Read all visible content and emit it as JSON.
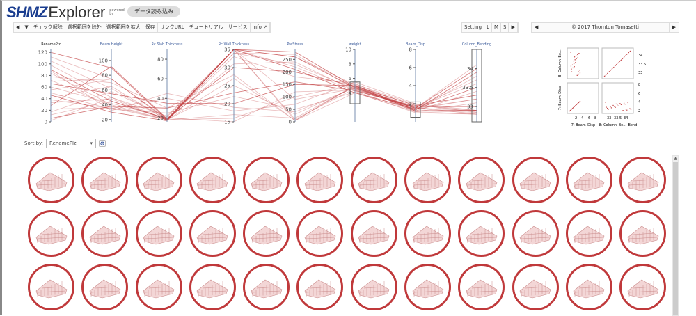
{
  "header": {
    "brand": "SHMZ",
    "app": "Explorer",
    "powered": "powered by",
    "load_button": "データ読み込み"
  },
  "toolbar": {
    "items": [
      "◀",
      "▼",
      "チェック解除",
      "選択範囲を除外",
      "選択範囲を拡大",
      "保存",
      "リンクURL",
      "チュートリアル",
      "サービス",
      "Info ↗"
    ]
  },
  "size_toolbar": {
    "items": [
      "Setting",
      "L",
      "M",
      "S",
      "▶"
    ]
  },
  "copyright": {
    "prev": "◀",
    "text": "© 2017 Thornton Tomasetti",
    "next": "▶"
  },
  "sort": {
    "label": "Sort by:",
    "value": "RenamePlz"
  },
  "colors": {
    "line": "#c0393b",
    "axis_label": "#3a5a9a"
  },
  "chart_data": {
    "type": "parallel-coordinates",
    "axes": [
      {
        "name": "RenamePlz",
        "range": [
          0,
          125
        ],
        "ticks": [
          0,
          20,
          40,
          60,
          80,
          100,
          120
        ]
      },
      {
        "name": "Beam Height",
        "range": [
          17,
          115
        ],
        "ticks": [
          20,
          40,
          60,
          80,
          100
        ]
      },
      {
        "name": "Rc Slab Thickness",
        "range": [
          16,
          90
        ],
        "ticks": [
          20,
          40,
          60,
          80
        ]
      },
      {
        "name": "Rc Wall Thickness",
        "range": [
          15,
          35
        ],
        "ticks": [
          15,
          20,
          25,
          30,
          35
        ]
      },
      {
        "name": "PreStress",
        "range": [
          0,
          290
        ],
        "ticks": [
          0,
          50,
          100,
          150,
          200,
          250
        ]
      },
      {
        "name": "weight",
        "range": [
          0,
          10
        ],
        "ticks": [
          4,
          6,
          8,
          10
        ],
        "brush": [
          2.5,
          5.5
        ]
      },
      {
        "name": "Beam_Disp",
        "range": [
          0,
          8
        ],
        "ticks": [
          2,
          4,
          6,
          8
        ],
        "brush": [
          0.5,
          2.2
        ]
      },
      {
        "name": "Column_Bending",
        "range": [
          32.6,
          34.5
        ],
        "ticks": [
          33.0,
          33.5,
          34.0
        ],
        "brush": [
          32.6,
          34.5
        ]
      }
    ],
    "lines": [
      [
        120,
        90,
        18,
        35,
        280,
        4.8,
        1.5,
        34.0
      ],
      [
        112,
        75,
        19,
        35,
        260,
        5.1,
        1.3,
        33.8
      ],
      [
        105,
        62,
        18,
        34,
        230,
        4.5,
        1.6,
        33.6
      ],
      [
        98,
        50,
        22,
        35,
        220,
        4.2,
        1.2,
        33.4
      ],
      [
        90,
        45,
        19,
        30,
        200,
        4.9,
        1.8,
        33.3
      ],
      [
        84,
        40,
        18,
        33,
        180,
        5.3,
        1.4,
        33.2
      ],
      [
        78,
        70,
        30,
        28,
        5,
        4.0,
        1.1,
        33.1
      ],
      [
        72,
        38,
        18,
        35,
        10,
        4.6,
        1.7,
        33.0
      ],
      [
        66,
        55,
        35,
        20,
        150,
        5.0,
        1.2,
        32.9
      ],
      [
        60,
        42,
        20,
        15,
        120,
        4.4,
        1.5,
        32.9
      ],
      [
        55,
        75,
        18,
        16,
        100,
        5.2,
        1.9,
        32.85
      ],
      [
        50,
        34,
        25,
        22,
        50,
        4.1,
        1.0,
        32.8
      ],
      [
        46,
        30,
        17,
        35,
        260,
        4.7,
        1.3,
        33.9
      ],
      [
        42,
        65,
        18,
        31,
        240,
        4.3,
        1.6,
        33.7
      ],
      [
        38,
        35,
        40,
        18,
        70,
        5.5,
        2.0,
        32.9
      ],
      [
        33,
        48,
        18,
        25,
        30,
        4.8,
        1.2,
        32.85
      ],
      [
        28,
        92,
        19,
        35,
        210,
        4.0,
        1.4,
        33.5
      ],
      [
        22,
        36,
        18,
        27,
        5,
        5.0,
        1.8,
        32.9
      ],
      [
        17,
        58,
        21,
        35,
        90,
        4.6,
        1.5,
        33.2
      ],
      [
        12,
        45,
        18,
        17,
        15,
        4.9,
        1.1,
        32.8
      ],
      [
        6,
        38,
        30,
        23,
        160,
        4.3,
        1.7,
        33.0
      ],
      [
        2,
        50,
        18,
        35,
        5,
        5.1,
        1.3,
        32.9
      ],
      [
        70,
        75,
        18,
        34,
        270,
        4.5,
        1.5,
        34.1
      ],
      [
        88,
        32,
        45,
        19,
        40,
        4.7,
        1.6,
        32.8
      ]
    ]
  },
  "splom": {
    "row_labels": [
      "8: Column_Be...",
      "7: Beam_Disp"
    ],
    "col_labels": [
      "7: Beam_Disp",
      "8: Column_Be..._Bend"
    ],
    "right_ticks_top": [
      "34",
      "33.5",
      "33"
    ],
    "right_ticks_bottom": [
      "8",
      "6",
      "4",
      "2"
    ],
    "bottom_ticks_left": [
      "2",
      "4",
      "6",
      "8"
    ],
    "bottom_ticks_right": [
      "33",
      "33.5",
      "34"
    ]
  },
  "gallery": {
    "count": 36
  }
}
